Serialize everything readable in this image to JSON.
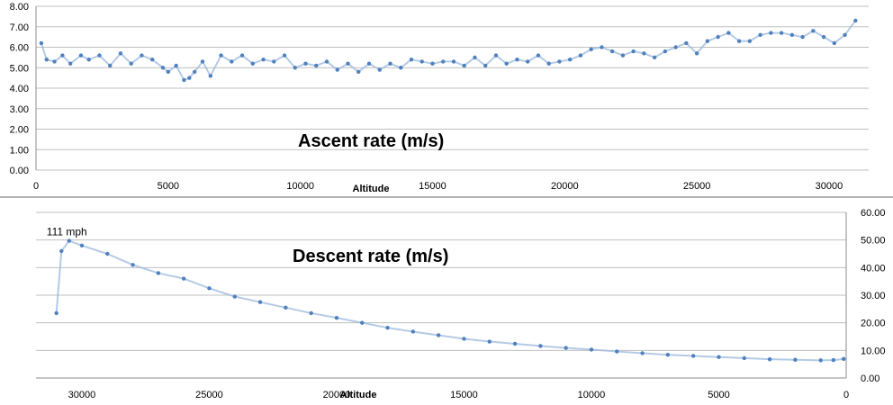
{
  "chart_data": [
    {
      "id": "ascent",
      "type": "line",
      "title": "Ascent rate (m/s)",
      "xlabel": "Altitude",
      "ylabel": "",
      "xlim": [
        0,
        31500
      ],
      "ylim": [
        0,
        8
      ],
      "x_reversed": false,
      "y_axis_side": "left",
      "xticks": [
        0,
        5000,
        10000,
        15000,
        20000,
        25000,
        30000
      ],
      "yticks": [
        "0.00",
        "1.00",
        "2.00",
        "3.00",
        "4.00",
        "5.00",
        "6.00",
        "7.00",
        "8.00"
      ],
      "grid": true,
      "series": [
        {
          "name": "Ascent rate",
          "color": "#4f81bd",
          "x": [
            200,
            400,
            700,
            1000,
            1300,
            1700,
            2000,
            2400,
            2800,
            3200,
            3600,
            4000,
            4400,
            4800,
            5000,
            5300,
            5600,
            5800,
            6000,
            6300,
            6600,
            7000,
            7400,
            7800,
            8200,
            8600,
            9000,
            9400,
            9800,
            10200,
            10600,
            11000,
            11400,
            11800,
            12200,
            12600,
            13000,
            13400,
            13800,
            14200,
            14600,
            15000,
            15400,
            15800,
            16200,
            16600,
            17000,
            17400,
            17800,
            18200,
            18600,
            19000,
            19400,
            19800,
            20200,
            20600,
            21000,
            21400,
            21800,
            22200,
            22600,
            23000,
            23400,
            23800,
            24200,
            24600,
            25000,
            25400,
            25800,
            26200,
            26600,
            27000,
            27400,
            27800,
            28200,
            28600,
            29000,
            29400,
            29800,
            30200,
            30600,
            31000
          ],
          "y": [
            6.2,
            5.4,
            5.3,
            5.6,
            5.2,
            5.6,
            5.4,
            5.6,
            5.1,
            5.7,
            5.2,
            5.6,
            5.4,
            5.0,
            4.8,
            5.1,
            4.4,
            4.5,
            4.8,
            5.3,
            4.6,
            5.6,
            5.3,
            5.6,
            5.2,
            5.4,
            5.3,
            5.6,
            5.0,
            5.2,
            5.1,
            5.3,
            4.9,
            5.2,
            4.8,
            5.2,
            4.9,
            5.2,
            5.0,
            5.4,
            5.3,
            5.2,
            5.3,
            5.3,
            5.1,
            5.5,
            5.1,
            5.6,
            5.2,
            5.4,
            5.3,
            5.6,
            5.2,
            5.3,
            5.4,
            5.6,
            5.9,
            6.0,
            5.8,
            5.6,
            5.8,
            5.7,
            5.5,
            5.8,
            6.0,
            6.2,
            5.7,
            6.3,
            6.5,
            6.7,
            6.3,
            6.3,
            6.6,
            6.7,
            6.7,
            6.6,
            6.5,
            6.8,
            6.5,
            6.2,
            6.6,
            7.3
          ]
        }
      ]
    },
    {
      "id": "descent",
      "type": "line",
      "title": "Descent rate (m/s)",
      "xlabel": "Altitude",
      "ylabel": "",
      "xlim": [
        31800,
        0
      ],
      "ylim": [
        0,
        60
      ],
      "x_reversed": true,
      "y_axis_side": "right",
      "xticks": [
        30000,
        25000,
        20000,
        15000,
        10000,
        5000,
        0
      ],
      "yticks": [
        "0.00",
        "10.00",
        "20.00",
        "30.00",
        "40.00",
        "50.00",
        "60.00"
      ],
      "grid": true,
      "annotations": [
        {
          "text": "111 mph",
          "x": 30500,
          "y": 49.7
        }
      ],
      "series": [
        {
          "name": "Descent rate",
          "color": "#4f81bd",
          "x": [
            31000,
            30800,
            30500,
            30000,
            29000,
            28000,
            27000,
            26000,
            25000,
            24000,
            23000,
            22000,
            21000,
            20000,
            19000,
            18000,
            17000,
            16000,
            15000,
            14000,
            13000,
            12000,
            11000,
            10000,
            9000,
            8000,
            7000,
            6000,
            5000,
            4000,
            3000,
            2000,
            1000,
            500,
            100
          ],
          "y": [
            23.5,
            46,
            49.7,
            48,
            45,
            41,
            38,
            36,
            32.5,
            29.5,
            27.5,
            25.5,
            23.5,
            21.8,
            20,
            18.2,
            16.8,
            15.5,
            14.2,
            13.2,
            12.4,
            11.6,
            10.9,
            10.3,
            9.6,
            9.0,
            8.4,
            8.0,
            7.6,
            7.2,
            6.8,
            6.6,
            6.4,
            6.5,
            6.9
          ]
        }
      ]
    }
  ]
}
